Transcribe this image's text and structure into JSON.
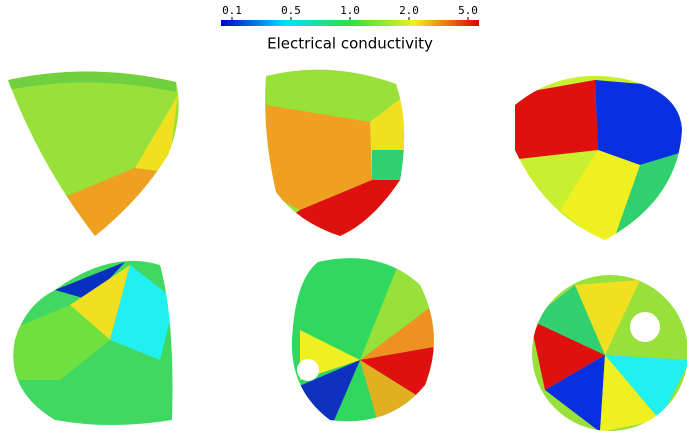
{
  "colorbar": {
    "label": "Electrical conductivity",
    "ticks": [
      {
        "value": 0.1,
        "label": "0.1"
      },
      {
        "value": 0.5,
        "label": "0.5"
      },
      {
        "value": 1,
        "label": "1.0"
      },
      {
        "value": 2,
        "label": "2.0"
      },
      {
        "value": 5,
        "label": "5.0"
      }
    ],
    "colors": [
      "#0000c8",
      "#00e0ff",
      "#30e040",
      "#f0f020",
      "#e00000"
    ]
  }
}
